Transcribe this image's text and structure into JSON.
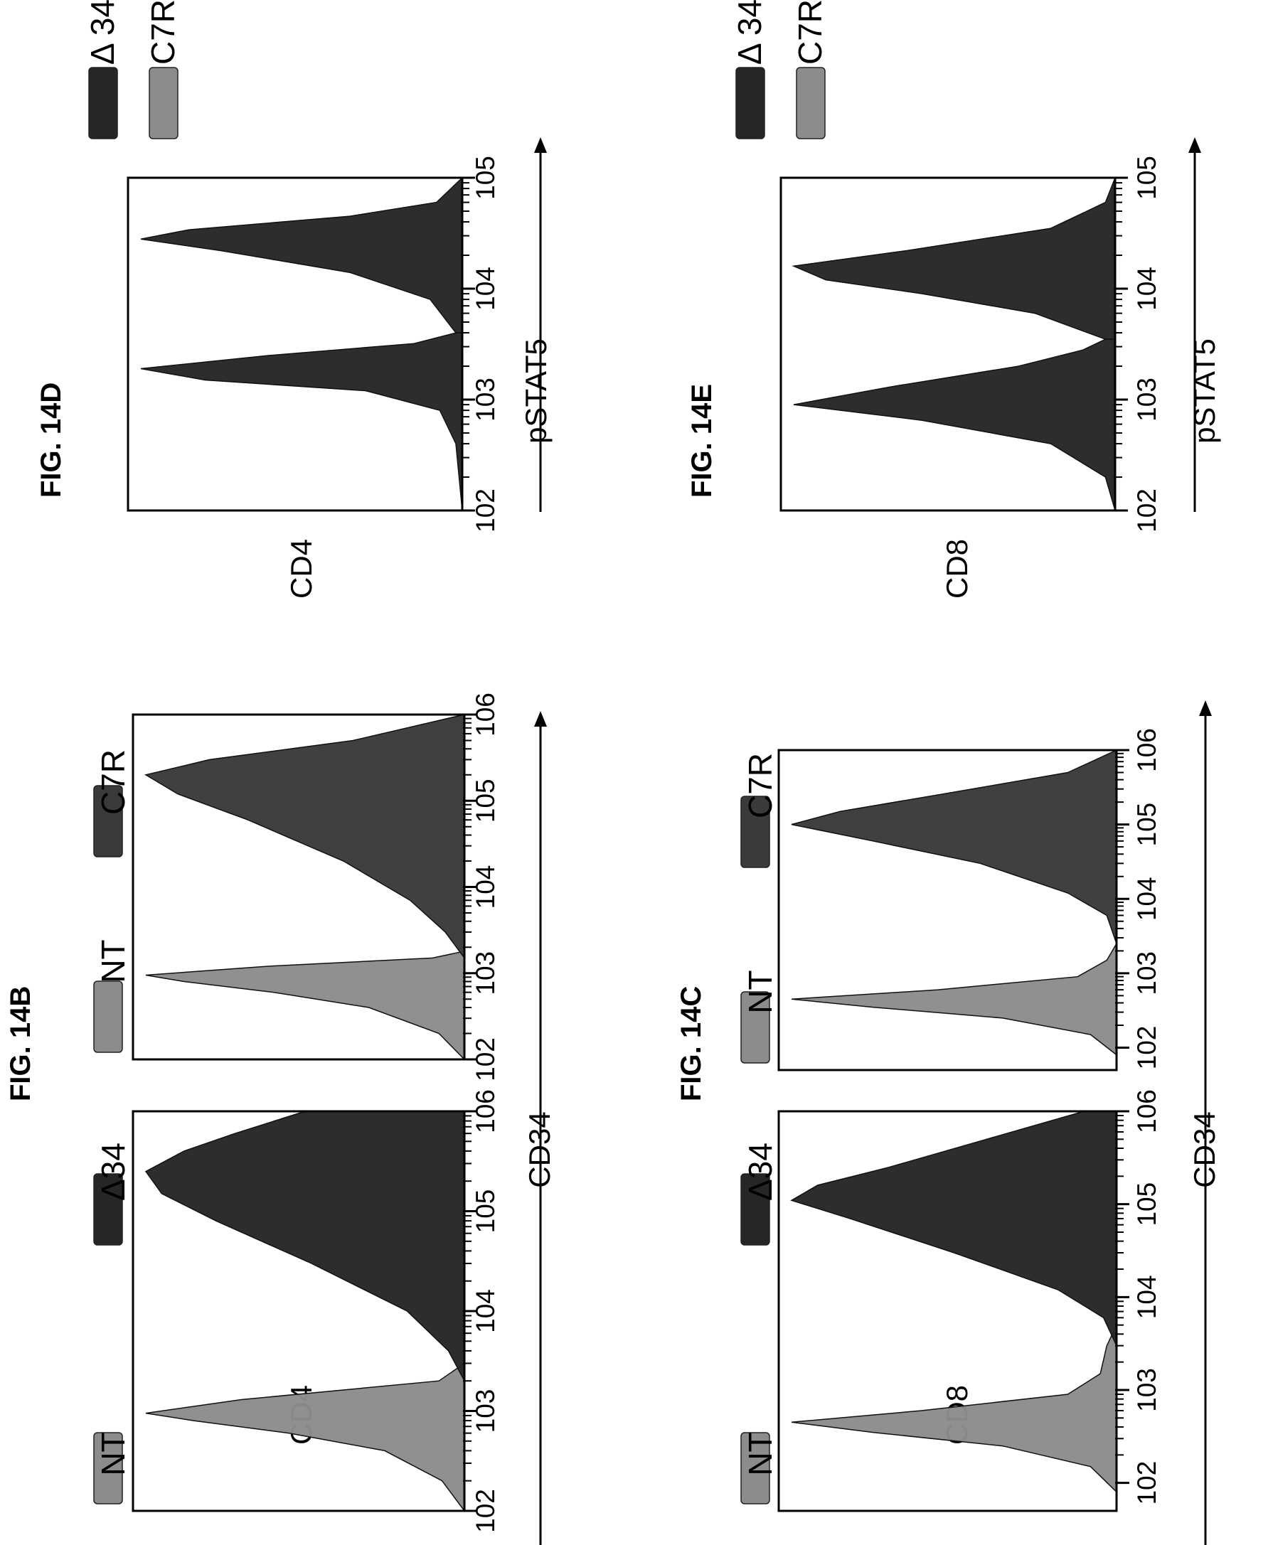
{
  "colors": {
    "dark": "#262626",
    "mid": "#3a3a3a",
    "light": "#8c8c8c",
    "frame": "#000000"
  },
  "tick_exponents": [
    "2",
    "3",
    "4",
    "5",
    "6"
  ],
  "chart_data": [
    {
      "id": "fig14B",
      "type": "area",
      "title": "FIG. 14B",
      "xlabel": "CD34",
      "ylabel": "CD4",
      "x_scale": "log",
      "panels": [
        {
          "x_ticks": [
            "102",
            "103",
            "104",
            "105",
            "106"
          ],
          "xlim": [
            100,
            1000000
          ],
          "legend": [
            {
              "label": "NT",
              "color": "#8c8c8c"
            },
            {
              "label": "Δ34",
              "color": "#262626"
            }
          ],
          "series": [
            {
              "name": "NT",
              "color": "#8c8c8c",
              "x": [
                100,
                200,
                400,
                600,
                800,
                950,
                1300,
                2000,
                3000
              ],
              "y": [
                0.0,
                0.07,
                0.25,
                0.55,
                0.85,
                1.0,
                0.7,
                0.08,
                0.0
              ]
            },
            {
              "name": "Δ34",
              "color": "#262626",
              "x": [
                2000,
                4000,
                10000,
                30000,
                80000,
                150000,
                250000,
                400000,
                600000,
                1000000
              ],
              "y": [
                0.0,
                0.05,
                0.18,
                0.48,
                0.78,
                0.95,
                1.0,
                0.88,
                0.72,
                0.5
              ]
            }
          ]
        },
        {
          "x_ticks": [
            "102",
            "103",
            "104",
            "105",
            "106"
          ],
          "xlim": [
            100,
            1000000
          ],
          "legend": [
            {
              "label": "NT",
              "color": "#8c8c8c"
            },
            {
              "label": "C7R",
              "color": "#3a3a3a"
            }
          ],
          "series": [
            {
              "name": "NT",
              "color": "#8c8c8c",
              "x": [
                100,
                200,
                400,
                600,
                800,
                950,
                1200,
                1500,
                1800
              ],
              "y": [
                0.0,
                0.08,
                0.3,
                0.6,
                0.88,
                1.0,
                0.62,
                0.1,
                0.0
              ]
            },
            {
              "name": "C7R",
              "color": "#3a3a3a",
              "x": [
                1500,
                3000,
                7000,
                20000,
                60000,
                120000,
                200000,
                300000,
                500000,
                1000000
              ],
              "y": [
                0.0,
                0.06,
                0.17,
                0.38,
                0.68,
                0.9,
                1.0,
                0.8,
                0.35,
                0.0
              ]
            }
          ]
        }
      ]
    },
    {
      "id": "fig14C",
      "type": "area",
      "title": "FIG. 14C",
      "xlabel": "CD34",
      "ylabel": "CD8",
      "x_scale": "log",
      "panels": [
        {
          "x_ticks": [
            "102",
            "103",
            "104",
            "105",
            "106"
          ],
          "xlim": [
            50,
            1000000
          ],
          "legend": [
            {
              "label": "NT",
              "color": "#8c8c8c"
            },
            {
              "label": "Δ34",
              "color": "#262626"
            }
          ],
          "series": [
            {
              "name": "NT",
              "color": "#8c8c8c",
              "x": [
                80,
                150,
                250,
                350,
                450,
                600,
                900,
                1500,
                3000,
                5000
              ],
              "y": [
                0.0,
                0.08,
                0.35,
                0.75,
                1.0,
                0.6,
                0.15,
                0.05,
                0.03,
                0.0
              ]
            },
            {
              "name": "Δ34",
              "color": "#262626",
              "x": [
                3000,
                6000,
                12000,
                30000,
                70000,
                110000,
                160000,
                250000,
                500000,
                1000000
              ],
              "y": [
                0.0,
                0.04,
                0.18,
                0.5,
                0.82,
                1.0,
                0.92,
                0.7,
                0.4,
                0.1
              ]
            }
          ]
        },
        {
          "x_ticks": [
            "102",
            "103",
            "104",
            "105",
            "106"
          ],
          "xlim": [
            50,
            1000000
          ],
          "legend": [
            {
              "label": "NT",
              "color": "#8c8c8c"
            },
            {
              "label": "C7R",
              "color": "#3a3a3a"
            }
          ],
          "series": [
            {
              "name": "NT",
              "color": "#8c8c8c",
              "x": [
                80,
                150,
                250,
                350,
                450,
                600,
                900,
                1500,
                2500
              ],
              "y": [
                0.0,
                0.08,
                0.35,
                0.75,
                1.0,
                0.55,
                0.12,
                0.03,
                0.0
              ]
            },
            {
              "name": "C7R",
              "color": "#3a3a3a",
              "x": [
                2500,
                6000,
                12000,
                30000,
                60000,
                100000,
                150000,
                250000,
                500000,
                1000000
              ],
              "y": [
                0.0,
                0.03,
                0.15,
                0.42,
                0.75,
                1.0,
                0.85,
                0.55,
                0.15,
                0.0
              ]
            }
          ]
        }
      ]
    },
    {
      "id": "fig14D",
      "type": "area",
      "title": "FIG. 14D",
      "xlabel": "pSTAT5",
      "ylabel": "CD4",
      "x_scale": "log",
      "panels": [
        {
          "x_ticks": [
            "102",
            "103",
            "104",
            "105"
          ],
          "xlim": [
            100,
            100000
          ],
          "legend": [
            {
              "label": "Δ 34",
              "color": "#262626"
            },
            {
              "label": "C7R",
              "color": "#8c8c8c"
            }
          ],
          "series": [
            {
              "name": "Δ 34",
              "color": "#262626",
              "x": [
                100,
                400,
                800,
                1200,
                1500,
                1900,
                2500,
                3200,
                4000
              ],
              "y": [
                0.0,
                0.02,
                0.07,
                0.3,
                0.8,
                1.0,
                0.6,
                0.15,
                0.02
              ]
            },
            {
              "name": "C7R",
              "color": "#262626",
              "x": [
                4000,
                8000,
                14000,
                22000,
                28000,
                34000,
                45000,
                60000,
                100000
              ],
              "y": [
                0.02,
                0.1,
                0.35,
                0.75,
                1.0,
                0.85,
                0.35,
                0.08,
                0.0
              ]
            }
          ]
        }
      ]
    },
    {
      "id": "fig14E",
      "type": "area",
      "title": "FIG. 14E",
      "xlabel": "pSTAT5",
      "ylabel": "CD8",
      "x_scale": "log",
      "panels": [
        {
          "x_ticks": [
            "102",
            "103",
            "104",
            "105"
          ],
          "xlim": [
            100,
            100000
          ],
          "legend": [
            {
              "label": "Δ 34",
              "color": "#262626"
            },
            {
              "label": "C7R",
              "color": "#8c8c8c"
            }
          ],
          "series": [
            {
              "name": "Δ 34",
              "color": "#262626",
              "x": [
                100,
                200,
                400,
                650,
                900,
                1300,
                2000,
                2800,
                3500
              ],
              "y": [
                0.0,
                0.03,
                0.2,
                0.6,
                1.0,
                0.7,
                0.3,
                0.1,
                0.03
              ]
            },
            {
              "name": "C7R",
              "color": "#262626",
              "x": [
                3500,
                6000,
                9000,
                12000,
                16000,
                22000,
                35000,
                60000,
                100000
              ],
              "y": [
                0.03,
                0.25,
                0.6,
                0.9,
                1.0,
                0.65,
                0.2,
                0.03,
                0.0
              ]
            }
          ]
        }
      ]
    }
  ]
}
